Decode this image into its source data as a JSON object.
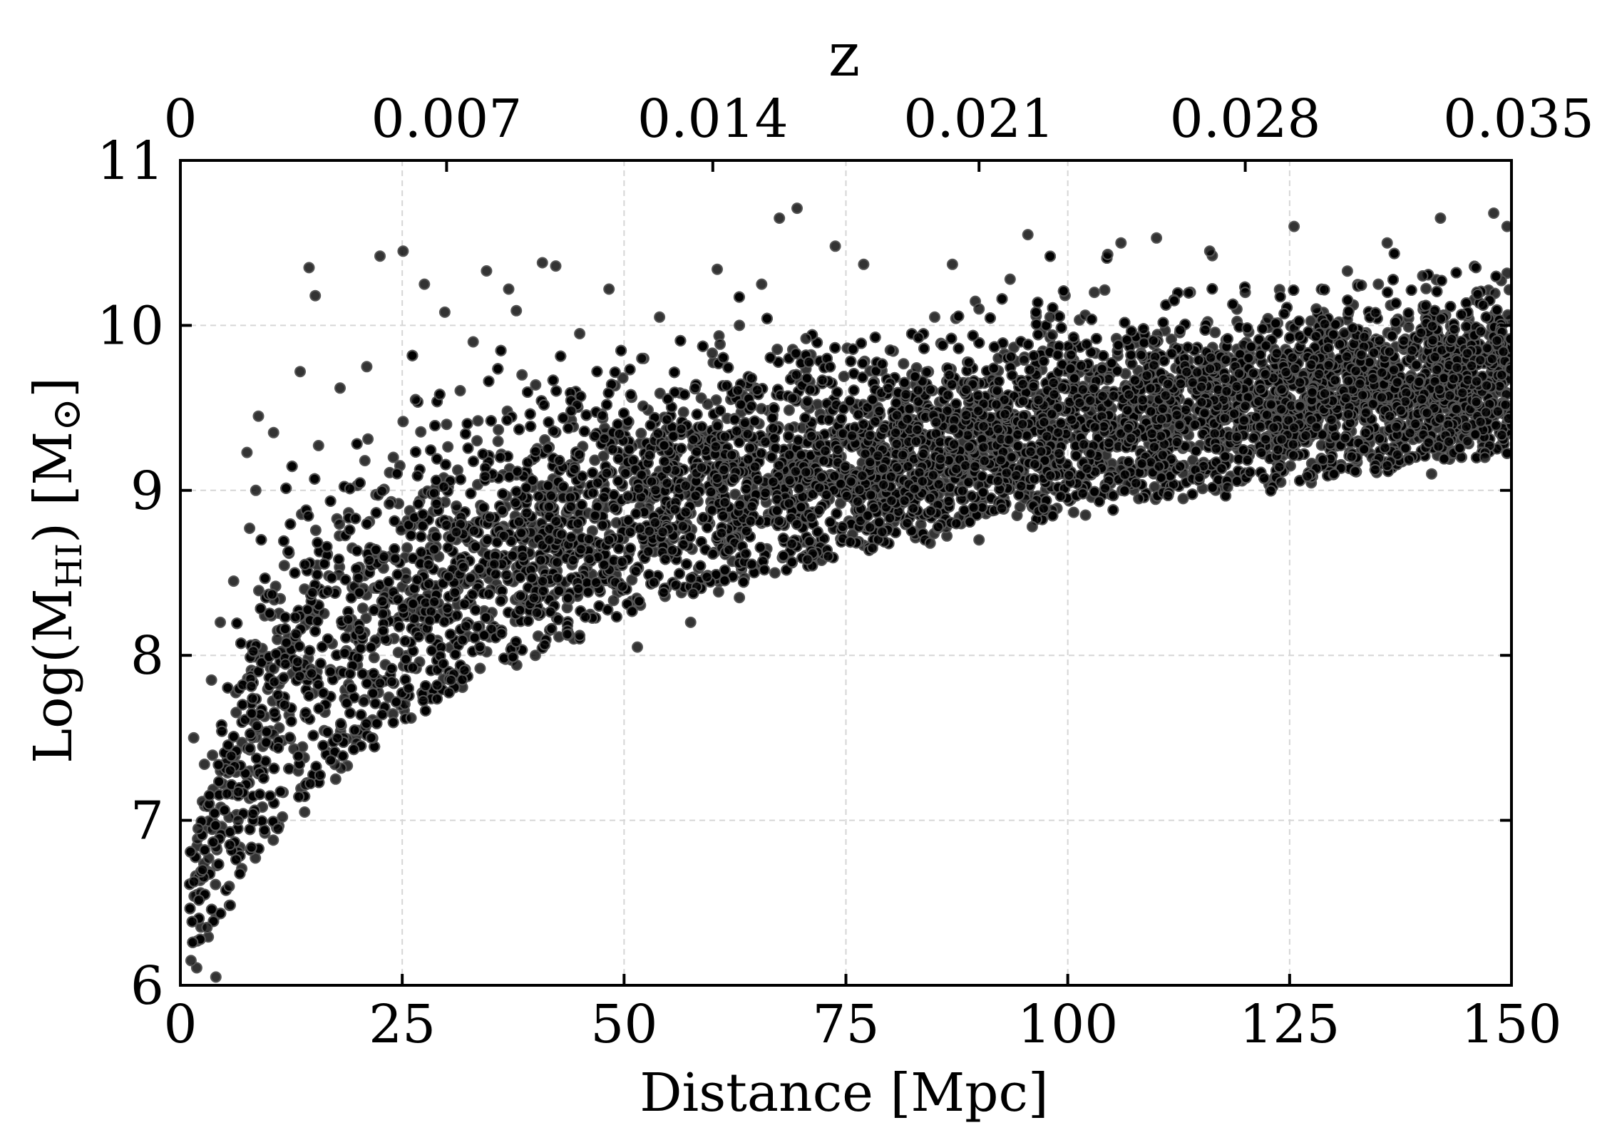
{
  "chart_data": {
    "type": "scatter",
    "title": "",
    "xlabel": "Distance [Mpc]",
    "ylabel_parts": {
      "prefix": "Log(M",
      "subscript": "HI",
      "middle": ") [M",
      "symbol": "⊙",
      "suffix": "]"
    },
    "top_axis_label": "z",
    "xlim": [
      0,
      150
    ],
    "ylim": [
      6,
      11
    ],
    "x_ticks": [
      "0",
      "25",
      "50",
      "75",
      "100",
      "125",
      "150"
    ],
    "x_tick_values": [
      0,
      25,
      50,
      75,
      100,
      125,
      150
    ],
    "y_ticks": [
      "6",
      "7",
      "8",
      "9",
      "10",
      "11"
    ],
    "y_tick_values": [
      6,
      7,
      8,
      9,
      10,
      11
    ],
    "top_ticks": [
      "0",
      "0.007",
      "0.014",
      "0.021",
      "0.028",
      "0.035"
    ],
    "top_tick_values": [
      0,
      0.007,
      0.014,
      0.021,
      0.028,
      0.035
    ],
    "top_axis_zlim": [
      0,
      0.035
    ],
    "grid": true,
    "marker_color": "#000000",
    "marker_edge_color": "#555555",
    "series": [
      {
        "distribution": {
          "lower_envelope": [
            [
              1,
              6.0
            ],
            [
              5,
              6.4
            ],
            [
              10,
              6.9
            ],
            [
              15,
              7.2
            ],
            [
              25,
              7.6
            ],
            [
              40,
              8.05
            ],
            [
              50,
              8.25
            ],
            [
              75,
              8.65
            ],
            [
              100,
              8.9
            ],
            [
              125,
              9.05
            ],
            [
              150,
              9.25
            ]
          ],
          "median": [
            [
              2,
              6.6
            ],
            [
              5,
              7.1
            ],
            [
              10,
              7.7
            ],
            [
              15,
              8.0
            ],
            [
              25,
              8.35
            ],
            [
              40,
              8.75
            ],
            [
              50,
              8.9
            ],
            [
              75,
              9.15
            ],
            [
              100,
              9.4
            ],
            [
              125,
              9.55
            ],
            [
              150,
              9.7
            ]
          ],
          "upper_envelope": [
            [
              2,
              7.5
            ],
            [
              5,
              8.3
            ],
            [
              10,
              9.3
            ],
            [
              15,
              9.8
            ],
            [
              25,
              10.2
            ],
            [
              40,
              10.3
            ],
            [
              50,
              10.3
            ],
            [
              75,
              10.35
            ],
            [
              100,
              10.4
            ],
            [
              125,
              10.45
            ],
            [
              150,
              10.6
            ]
          ],
          "approx_point_count": 26000
        },
        "points": [
          [
            14.5,
            10.35
          ],
          [
            15.2,
            10.18
          ],
          [
            22.5,
            10.42
          ],
          [
            25.1,
            10.45
          ],
          [
            27.5,
            10.25
          ],
          [
            29.8,
            10.08
          ],
          [
            34.5,
            10.33
          ],
          [
            37.0,
            10.22
          ],
          [
            40.8,
            10.38
          ],
          [
            42.3,
            10.36
          ],
          [
            48.3,
            10.22
          ],
          [
            54.0,
            10.05
          ],
          [
            60.5,
            10.34
          ],
          [
            65.5,
            10.25
          ],
          [
            67.5,
            10.65
          ],
          [
            69.5,
            10.71
          ],
          [
            73.8,
            10.48
          ],
          [
            77.0,
            10.37
          ],
          [
            87.0,
            10.37
          ],
          [
            93.5,
            10.28
          ],
          [
            95.5,
            10.55
          ],
          [
            104.5,
            10.43
          ],
          [
            106.0,
            10.5
          ],
          [
            110.0,
            10.53
          ],
          [
            116.0,
            10.45
          ],
          [
            125.5,
            10.6
          ],
          [
            136.0,
            10.5
          ],
          [
            142.0,
            10.65
          ],
          [
            148.0,
            10.68
          ],
          [
            149.5,
            10.6
          ],
          [
            13.5,
            9.72
          ],
          [
            8.8,
            9.45
          ],
          [
            10.5,
            9.35
          ],
          [
            7.5,
            9.23
          ],
          [
            8.5,
            9.0
          ],
          [
            7.8,
            8.77
          ],
          [
            6.0,
            8.45
          ],
          [
            4.5,
            8.2
          ],
          [
            3.5,
            7.85
          ],
          [
            1.5,
            7.5
          ],
          [
            2.0,
            6.95
          ],
          [
            2.5,
            6.7
          ],
          [
            3.0,
            6.35
          ],
          [
            4.0,
            6.05
          ],
          [
            1.2,
            6.15
          ],
          [
            5.5,
            6.6
          ],
          [
            6.5,
            7.0
          ],
          [
            24.0,
            9.2
          ],
          [
            18.0,
            9.62
          ],
          [
            21.0,
            9.75
          ],
          [
            26.5,
            9.55
          ],
          [
            30.0,
            9.4
          ],
          [
            33.0,
            9.9
          ],
          [
            38.5,
            9.7
          ],
          [
            45.0,
            9.95
          ],
          [
            52.0,
            9.8
          ],
          [
            58.0,
            9.62
          ],
          [
            63.0,
            10.0
          ],
          [
            70.5,
            9.92
          ],
          [
            80.0,
            9.85
          ],
          [
            85.0,
            10.05
          ],
          [
            90.0,
            10.1
          ],
          [
            98.0,
            10.05
          ],
          [
            103.0,
            10.2
          ],
          [
            112.0,
            10.15
          ],
          [
            120.0,
            10.2
          ],
          [
            128.0,
            10.1
          ],
          [
            135.0,
            10.25
          ],
          [
            140.0,
            10.3
          ],
          [
            146.0,
            10.35
          ],
          [
            51.5,
            8.05
          ],
          [
            57.5,
            8.2
          ],
          [
            63.0,
            8.35
          ],
          [
            67.0,
            8.5
          ],
          [
            73.0,
            8.6
          ],
          [
            78.0,
            8.65
          ],
          [
            84.5,
            8.68
          ],
          [
            90.0,
            8.7
          ],
          [
            96.0,
            8.78
          ],
          [
            102.0,
            8.85
          ],
          [
            108.0,
            8.95
          ],
          [
            113.0,
            8.95
          ],
          [
            118.0,
            9.02
          ],
          [
            124.0,
            9.05
          ],
          [
            130.0,
            9.1
          ],
          [
            136.0,
            9.15
          ],
          [
            141.0,
            9.1
          ],
          [
            147.0,
            9.2
          ],
          [
            40.0,
            8.0
          ],
          [
            45.0,
            8.12
          ],
          [
            30.5,
            7.85
          ],
          [
            26.0,
            7.62
          ],
          [
            21.5,
            7.5
          ],
          [
            17.5,
            7.25
          ],
          [
            14.0,
            7.05
          ],
          [
            11.0,
            6.95
          ]
        ]
      }
    ]
  }
}
